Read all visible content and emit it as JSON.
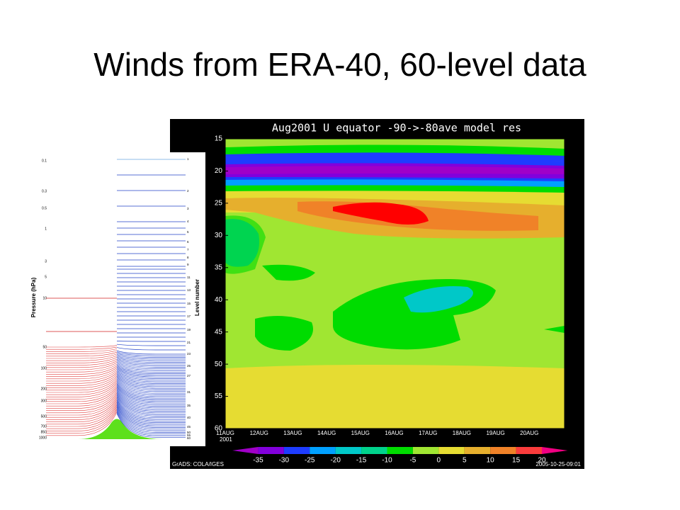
{
  "title": "Winds from ERA-40, 60-level data",
  "level_diagram": {
    "y_label": "Pressure (hPa)",
    "y2_label": "Level number",
    "pressure_labels": [
      "0.1",
      "0.3",
      "0.5",
      "1",
      "3",
      "5",
      "10",
      "50",
      "100",
      "200",
      "300",
      "500",
      "700",
      "850",
      "1000"
    ],
    "level_labels": [
      "1",
      "2",
      "3",
      "4",
      "5",
      "6",
      "7",
      "8",
      "9",
      "11",
      "13",
      "15",
      "17",
      "19",
      "21",
      "23",
      "25",
      "27",
      "31",
      "35",
      "40",
      "45",
      "50",
      "55",
      "60"
    ]
  },
  "contour_plot": {
    "title": "Aug2001 U equator -90->-80ave model res",
    "y_labels": [
      "15",
      "20",
      "25",
      "30",
      "35",
      "40",
      "45",
      "50",
      "55",
      "60"
    ],
    "x_labels": [
      "11AUG",
      "12AUG",
      "13AUG",
      "14AUG",
      "15AUG",
      "16AUG",
      "17AUG",
      "18AUG",
      "19AUG",
      "20AUG"
    ],
    "x_year": "2001",
    "colorbar_labels": [
      "-35",
      "-30",
      "-25",
      "-20",
      "-15",
      "-10",
      "-5",
      "0",
      "5",
      "10",
      "15",
      "20"
    ],
    "footer_left": "GrADS: COLA/IGES",
    "footer_right": "2005-10-25-09:01"
  }
}
